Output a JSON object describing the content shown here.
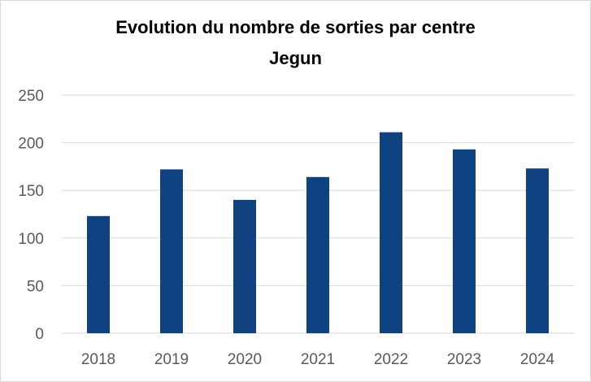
{
  "chart_data": {
    "type": "bar",
    "title_lines": [
      "Evolution du nombre de sorties par centre",
      "Jegun"
    ],
    "categories": [
      "2018",
      "2019",
      "2020",
      "2021",
      "2022",
      "2023",
      "2024"
    ],
    "values": [
      123,
      172,
      140,
      164,
      211,
      193,
      173
    ],
    "ylim": [
      0,
      250
    ],
    "yticks": [
      0,
      50,
      100,
      150,
      200,
      250
    ],
    "grid": true,
    "legend": "none",
    "bar_color": "#0f4280",
    "grid_color": "#d9d9d9"
  }
}
